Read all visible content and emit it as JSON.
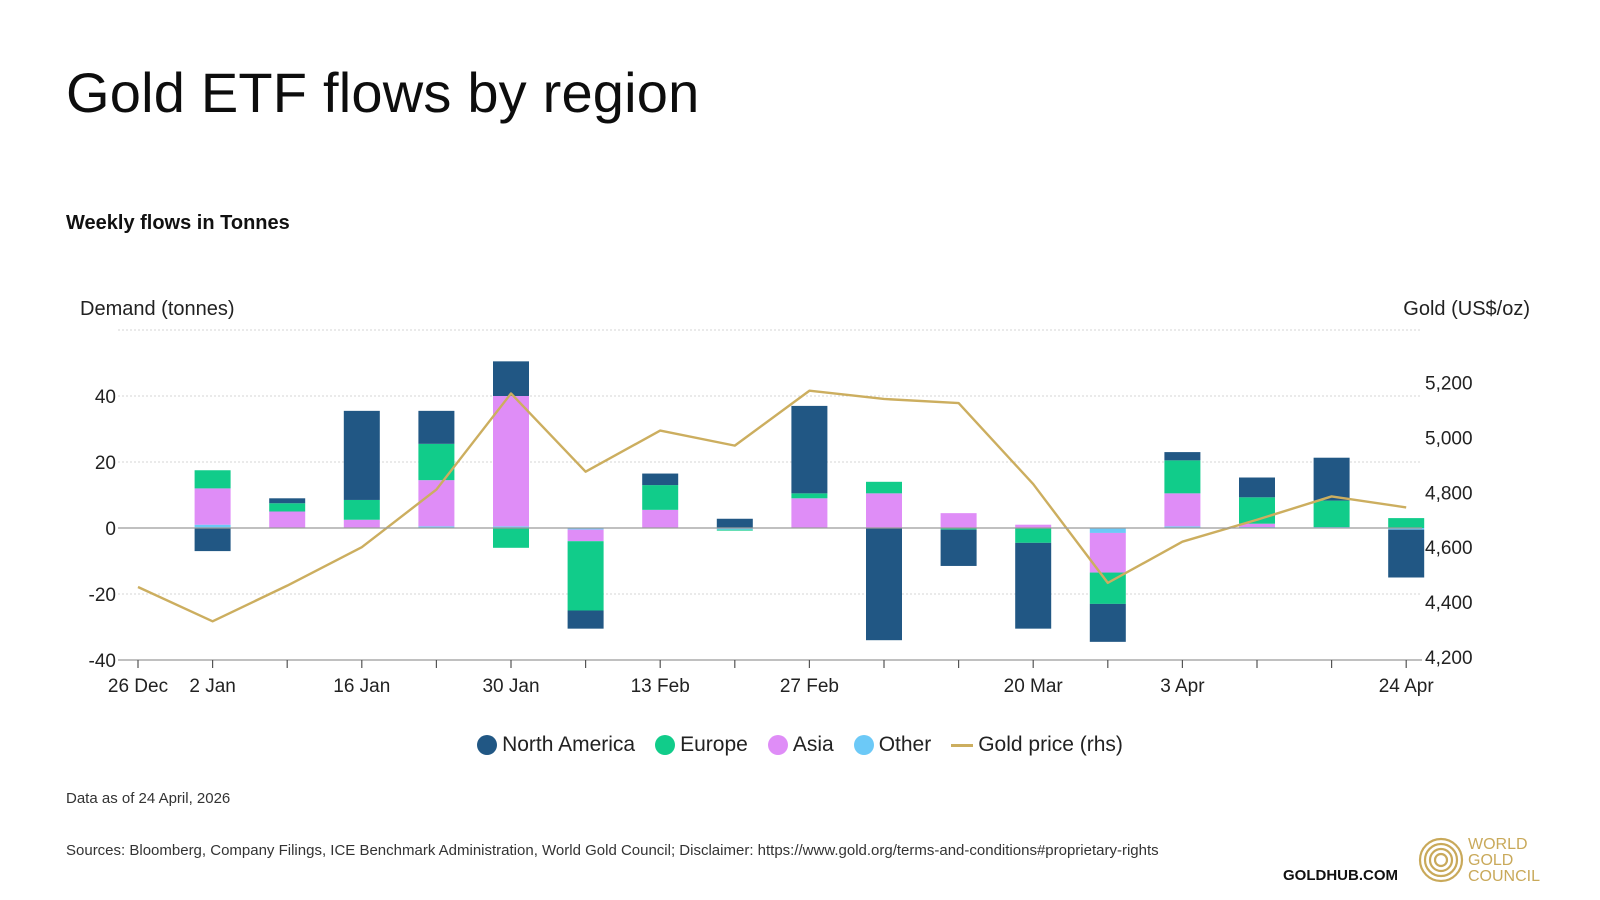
{
  "title": "Gold ETF flows by region",
  "subtitle": "Weekly flows in Tonnes",
  "data_note": "Data as of 24 April, 2026",
  "sources": "Sources: Bloomberg, Company Filings, ICE Benchmark Administration, World Gold Council; Disclaimer: https://www.gold.org/terms-and-conditions#proprietary-rights",
  "footer_brand": "GOLDHUB.COM",
  "logo_lines": [
    "WORLD",
    "GOLD",
    "COUNCIL"
  ],
  "colors": {
    "north_america": "#215784",
    "europe": "#11cc8a",
    "asia": "#df8df7",
    "other": "#6cc9f7",
    "gold_price": "#ccae5f",
    "axis": "#9a9a9a",
    "grid": "#d4d4d4"
  },
  "chart_data": {
    "type": "bar",
    "stacked": true,
    "xlabel": "",
    "ylabel": "Demand (tonnes)",
    "y2label": "Gold (US$/oz)",
    "ylim": [
      -40,
      60
    ],
    "y2lim": [
      4200,
      5420
    ],
    "yticks": [
      40,
      20,
      0,
      -20,
      -40
    ],
    "y2ticks": [
      "5,200",
      "5,000",
      "4,800",
      "4,600",
      "4,400",
      "4,200"
    ],
    "x_tick_labels": [
      "26 Dec",
      "2 Jan",
      "16 Jan",
      "30 Jan",
      "13 Feb",
      "27 Feb",
      "20 Mar",
      "3 Apr",
      "24 Apr"
    ],
    "categories": [
      "26 Dec",
      "2 Jan",
      "9 Jan",
      "16 Jan",
      "23 Jan",
      "30 Jan",
      "6 Feb",
      "13 Feb",
      "20 Feb",
      "27 Feb",
      "6 Mar",
      "13 Mar",
      "20 Mar",
      "27 Mar",
      "3 Apr",
      "10 Apr",
      "17 Apr",
      "24 Apr"
    ],
    "legend_position": "bottom",
    "series": [
      {
        "name": "North America",
        "values": [
          null,
          -7,
          1.5,
          27,
          10,
          10.5,
          -5.5,
          3.5,
          2.8,
          26.5,
          -34,
          -11,
          -26,
          -11.5,
          2.5,
          6,
          13,
          -14.5
        ]
      },
      {
        "name": "Europe",
        "values": [
          null,
          5.5,
          2.5,
          6,
          11,
          -6,
          -21,
          7.5,
          -0.3,
          1.5,
          3.5,
          -0.5,
          -4.5,
          -9.5,
          10,
          8,
          8,
          3
        ]
      },
      {
        "name": "Asia",
        "values": [
          null,
          11,
          5,
          2.5,
          14,
          39.5,
          -3.5,
          5.5,
          0,
          9,
          10.5,
          4.5,
          1,
          -12,
          10,
          1,
          0,
          0
        ]
      },
      {
        "name": "Other",
        "values": [
          null,
          1,
          0,
          0,
          0.5,
          0.5,
          -0.5,
          0,
          -0.5,
          0,
          0,
          0,
          0,
          -1.5,
          0.5,
          0.3,
          0.3,
          -0.5
        ]
      },
      {
        "name": "Gold price (rhs)",
        "axis": "rhs",
        "type": "line",
        "values": [
          4455,
          4330,
          4460,
          4600,
          4810,
          5160,
          4875,
          5025,
          4970,
          5170,
          5140,
          5125,
          4830,
          4470,
          4620,
          4700,
          4785,
          4745
        ]
      }
    ]
  }
}
